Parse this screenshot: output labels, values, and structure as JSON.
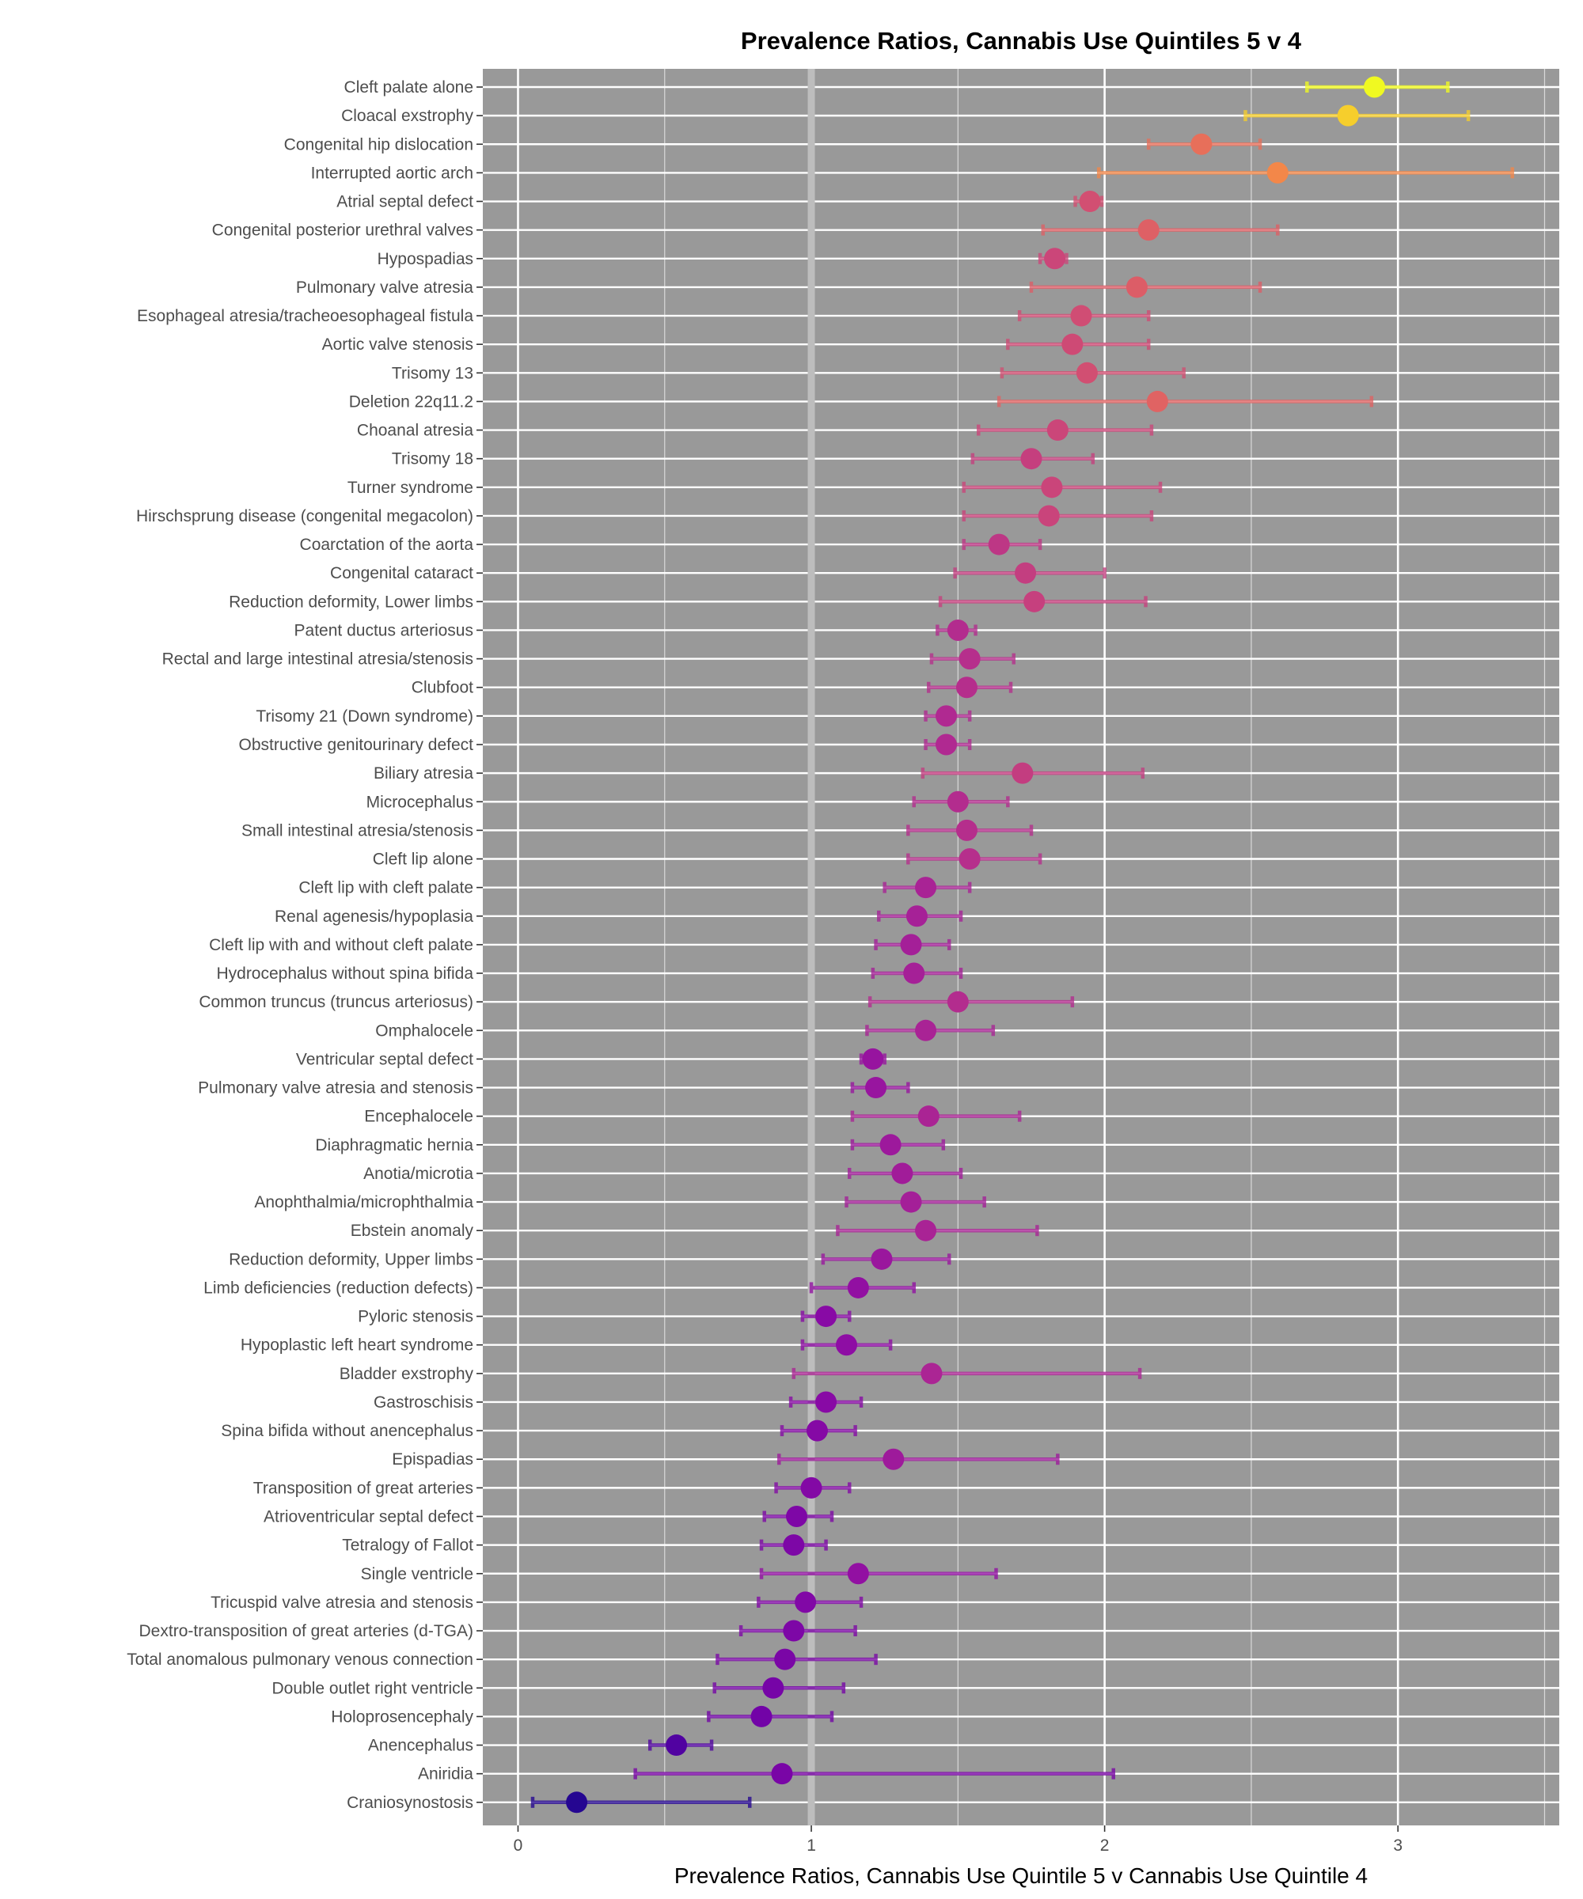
{
  "chart_data": {
    "type": "forest",
    "title": "Prevalence Ratios, Cannabis Use Quintiles 5 v 4",
    "xlabel": "Prevalence Ratios, Cannabis Use Quintile 5 v Cannabis Use Quintile 4",
    "ylabel": "",
    "xlim": [
      -0.12,
      3.55
    ],
    "x_ticks": [
      0,
      1,
      2,
      3
    ],
    "reference_line": 1,
    "grid": true,
    "legend": "none",
    "color_scale": "plasma (by point estimate)",
    "rows": [
      {
        "label": "Cleft palate alone",
        "pr": 2.92,
        "lower": 2.69,
        "upper": 3.17
      },
      {
        "label": "Cloacal exstrophy",
        "pr": 2.83,
        "lower": 2.48,
        "upper": 3.24
      },
      {
        "label": "Congenital hip dislocation",
        "pr": 2.33,
        "lower": 2.15,
        "upper": 2.53
      },
      {
        "label": "Interrupted aortic arch",
        "pr": 2.59,
        "lower": 1.98,
        "upper": 3.39
      },
      {
        "label": "Atrial septal defect",
        "pr": 1.95,
        "lower": 1.9,
        "upper": 1.99
      },
      {
        "label": "Congenital posterior urethral valves",
        "pr": 2.15,
        "lower": 1.79,
        "upper": 2.59
      },
      {
        "label": "Hypospadias",
        "pr": 1.83,
        "lower": 1.78,
        "upper": 1.87
      },
      {
        "label": "Pulmonary valve atresia",
        "pr": 2.11,
        "lower": 1.75,
        "upper": 2.53
      },
      {
        "label": "Esophageal atresia/tracheoesophageal fistula",
        "pr": 1.92,
        "lower": 1.71,
        "upper": 2.15
      },
      {
        "label": "Aortic valve stenosis",
        "pr": 1.89,
        "lower": 1.67,
        "upper": 2.15
      },
      {
        "label": "Trisomy 13",
        "pr": 1.94,
        "lower": 1.65,
        "upper": 2.27
      },
      {
        "label": "Deletion 22q11.2",
        "pr": 2.18,
        "lower": 1.64,
        "upper": 2.91
      },
      {
        "label": "Choanal atresia",
        "pr": 1.84,
        "lower": 1.57,
        "upper": 2.16
      },
      {
        "label": "Trisomy 18",
        "pr": 1.75,
        "lower": 1.55,
        "upper": 1.96
      },
      {
        "label": "Turner syndrome",
        "pr": 1.82,
        "lower": 1.52,
        "upper": 2.19
      },
      {
        "label": "Hirschsprung disease (congenital megacolon)",
        "pr": 1.81,
        "lower": 1.52,
        "upper": 2.16
      },
      {
        "label": "Coarctation of the aorta",
        "pr": 1.64,
        "lower": 1.52,
        "upper": 1.78
      },
      {
        "label": "Congenital cataract",
        "pr": 1.73,
        "lower": 1.49,
        "upper": 2.0
      },
      {
        "label": "Reduction deformity, Lower limbs",
        "pr": 1.76,
        "lower": 1.44,
        "upper": 2.14
      },
      {
        "label": "Patent ductus arteriosus",
        "pr": 1.5,
        "lower": 1.43,
        "upper": 1.56
      },
      {
        "label": "Rectal and large intestinal atresia/stenosis",
        "pr": 1.54,
        "lower": 1.41,
        "upper": 1.69
      },
      {
        "label": "Clubfoot",
        "pr": 1.53,
        "lower": 1.4,
        "upper": 1.68
      },
      {
        "label": "Trisomy 21 (Down syndrome)",
        "pr": 1.46,
        "lower": 1.39,
        "upper": 1.54
      },
      {
        "label": "Obstructive genitourinary defect",
        "pr": 1.46,
        "lower": 1.39,
        "upper": 1.54
      },
      {
        "label": "Biliary atresia",
        "pr": 1.72,
        "lower": 1.38,
        "upper": 2.13
      },
      {
        "label": "Microcephalus",
        "pr": 1.5,
        "lower": 1.35,
        "upper": 1.67
      },
      {
        "label": "Small intestinal atresia/stenosis",
        "pr": 1.53,
        "lower": 1.33,
        "upper": 1.75
      },
      {
        "label": "Cleft lip alone",
        "pr": 1.54,
        "lower": 1.33,
        "upper": 1.78
      },
      {
        "label": "Cleft lip with cleft palate",
        "pr": 1.39,
        "lower": 1.25,
        "upper": 1.54
      },
      {
        "label": "Renal agenesis/hypoplasia",
        "pr": 1.36,
        "lower": 1.23,
        "upper": 1.51
      },
      {
        "label": "Cleft lip with and without cleft palate",
        "pr": 1.34,
        "lower": 1.22,
        "upper": 1.47
      },
      {
        "label": "Hydrocephalus without spina bifida",
        "pr": 1.35,
        "lower": 1.21,
        "upper": 1.51
      },
      {
        "label": "Common truncus (truncus arteriosus)",
        "pr": 1.5,
        "lower": 1.2,
        "upper": 1.89
      },
      {
        "label": "Omphalocele",
        "pr": 1.39,
        "lower": 1.19,
        "upper": 1.62
      },
      {
        "label": "Ventricular septal defect",
        "pr": 1.21,
        "lower": 1.17,
        "upper": 1.25
      },
      {
        "label": "Pulmonary valve atresia and stenosis",
        "pr": 1.22,
        "lower": 1.14,
        "upper": 1.33
      },
      {
        "label": "Encephalocele",
        "pr": 1.4,
        "lower": 1.14,
        "upper": 1.71
      },
      {
        "label": "Diaphragmatic hernia",
        "pr": 1.27,
        "lower": 1.14,
        "upper": 1.45
      },
      {
        "label": "Anotia/microtia",
        "pr": 1.31,
        "lower": 1.13,
        "upper": 1.51
      },
      {
        "label": "Anophthalmia/microphthalmia",
        "pr": 1.34,
        "lower": 1.12,
        "upper": 1.59
      },
      {
        "label": "Ebstein anomaly",
        "pr": 1.39,
        "lower": 1.09,
        "upper": 1.77
      },
      {
        "label": "Reduction deformity, Upper limbs",
        "pr": 1.24,
        "lower": 1.04,
        "upper": 1.47
      },
      {
        "label": "Limb deficiencies (reduction defects)",
        "pr": 1.16,
        "lower": 1.0,
        "upper": 1.35
      },
      {
        "label": "Pyloric stenosis",
        "pr": 1.05,
        "lower": 0.97,
        "upper": 1.13
      },
      {
        "label": "Hypoplastic left heart syndrome",
        "pr": 1.12,
        "lower": 0.97,
        "upper": 1.27
      },
      {
        "label": "Bladder exstrophy",
        "pr": 1.41,
        "lower": 0.94,
        "upper": 2.12
      },
      {
        "label": "Gastroschisis",
        "pr": 1.05,
        "lower": 0.93,
        "upper": 1.17
      },
      {
        "label": "Spina bifida without anencephalus",
        "pr": 1.02,
        "lower": 0.9,
        "upper": 1.15
      },
      {
        "label": "Epispadias",
        "pr": 1.28,
        "lower": 0.89,
        "upper": 1.84
      },
      {
        "label": "Transposition of great arteries",
        "pr": 1.0,
        "lower": 0.88,
        "upper": 1.13
      },
      {
        "label": "Atrioventricular septal defect",
        "pr": 0.95,
        "lower": 0.84,
        "upper": 1.07
      },
      {
        "label": "Tetralogy of Fallot",
        "pr": 0.94,
        "lower": 0.83,
        "upper": 1.05
      },
      {
        "label": "Single ventricle",
        "pr": 1.16,
        "lower": 0.83,
        "upper": 1.63
      },
      {
        "label": "Tricuspid valve atresia and stenosis",
        "pr": 0.98,
        "lower": 0.82,
        "upper": 1.17
      },
      {
        "label": "Dextro-transposition of great arteries (d-TGA)",
        "pr": 0.94,
        "lower": 0.76,
        "upper": 1.15
      },
      {
        "label": "Total anomalous pulmonary venous connection",
        "pr": 0.91,
        "lower": 0.68,
        "upper": 1.22
      },
      {
        "label": "Double outlet right ventricle",
        "pr": 0.87,
        "lower": 0.67,
        "upper": 1.11
      },
      {
        "label": "Holoprosencephaly",
        "pr": 0.83,
        "lower": 0.65,
        "upper": 1.07
      },
      {
        "label": "Anencephalus",
        "pr": 0.54,
        "lower": 0.45,
        "upper": 0.66
      },
      {
        "label": "Aniridia",
        "pr": 0.9,
        "lower": 0.4,
        "upper": 2.03
      },
      {
        "label": "Craniosynostosis",
        "pr": 0.2,
        "lower": 0.05,
        "upper": 0.79
      }
    ]
  }
}
